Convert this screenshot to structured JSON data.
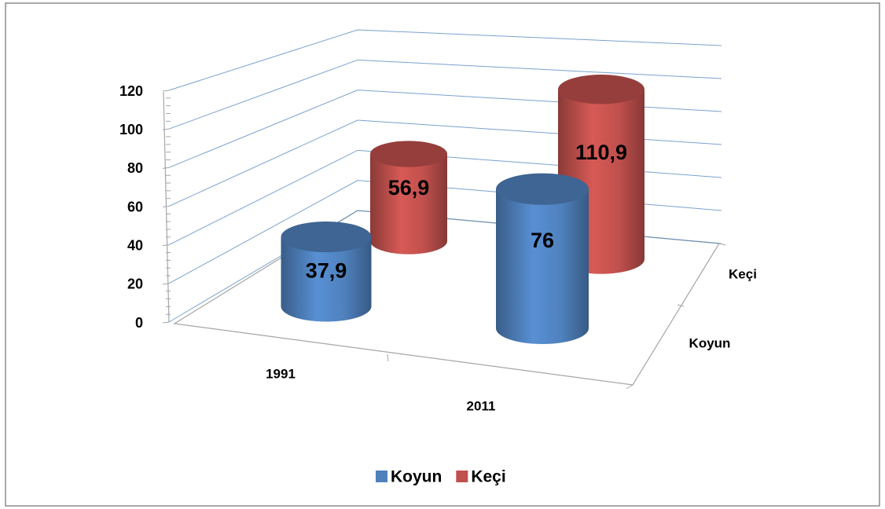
{
  "chart_data": {
    "type": "cylinder3d",
    "categories": [
      "1991",
      "2011"
    ],
    "series": [
      {
        "name": "Koyun",
        "color": "#4f81bd",
        "values": [
          37.9,
          76
        ],
        "value_labels": [
          "37,9",
          "76"
        ]
      },
      {
        "name": "Keçi",
        "color": "#c0504d",
        "values": [
          56.9,
          110.9
        ],
        "value_labels": [
          "56,9",
          "110,9"
        ]
      }
    ],
    "ylim": [
      0,
      120
    ],
    "yticks": [
      0,
      20,
      40,
      60,
      80,
      100,
      120
    ],
    "grid": true,
    "legend": "bottom"
  }
}
